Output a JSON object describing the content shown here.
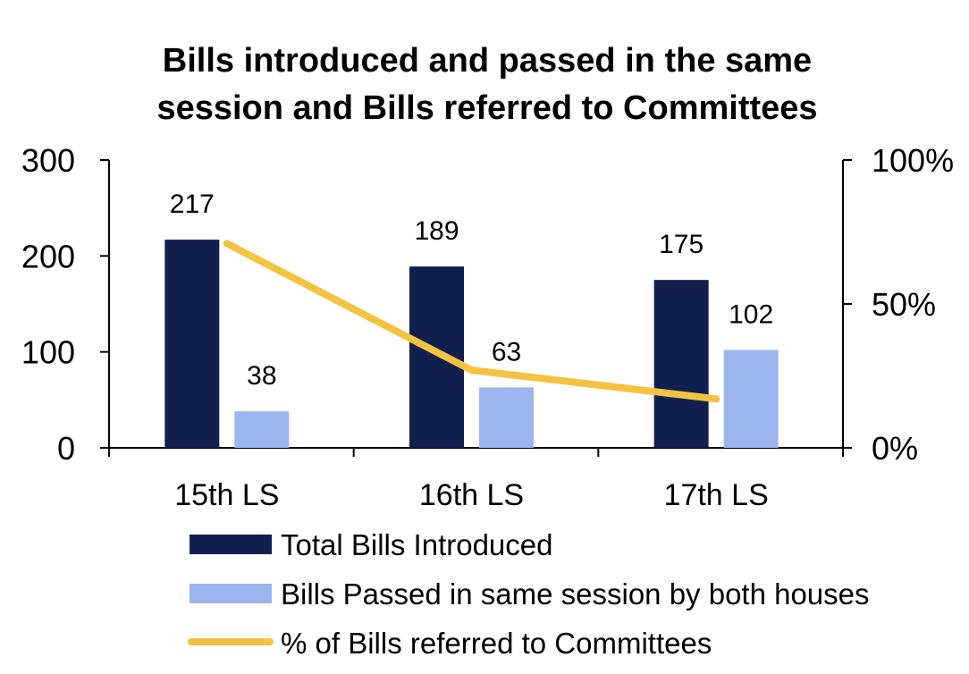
{
  "chart_data": {
    "type": "bar",
    "title_lines": [
      "Bills introduced and passed in the same",
      "session and Bills referred to Committees"
    ],
    "categories": [
      "15th LS",
      "16th LS",
      "17th LS"
    ],
    "series": [
      {
        "name": "Total Bills Introduced",
        "values": [
          217,
          189,
          175
        ],
        "color": "#12204f",
        "axis": "left"
      },
      {
        "name": "Bills Passed in same session by both houses",
        "values": [
          38,
          63,
          102
        ],
        "color": "#9db5ee",
        "axis": "left"
      },
      {
        "name": "% of Bills referred to Committees",
        "type": "line",
        "values": [
          71,
          27,
          17
        ],
        "color": "#f5c242",
        "axis": "right"
      }
    ],
    "data_labels": [
      [
        "217",
        "189",
        "175"
      ],
      [
        "38",
        "63",
        "102"
      ]
    ],
    "yleft": {
      "min": 0,
      "max": 300,
      "ticks": [
        0,
        100,
        200,
        300
      ],
      "tick_labels": [
        "0",
        "100",
        "200",
        "300"
      ]
    },
    "yright": {
      "min": 0,
      "max": 100,
      "ticks": [
        0,
        50,
        100
      ],
      "tick_labels": [
        "0%",
        "50%",
        "100%"
      ]
    },
    "legend_position": "bottom"
  }
}
